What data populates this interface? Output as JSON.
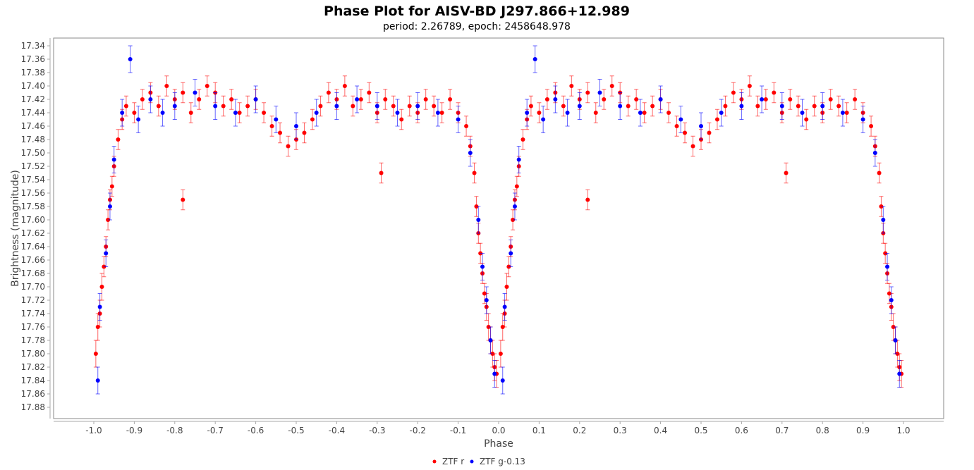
{
  "chart_data": {
    "type": "scatter",
    "title": "Phase Plot for AISV-BD J297.866+12.989",
    "subtitle": "period: 2.26789, epoch: 2458648.978",
    "xlabel": "Phase",
    "ylabel": "Brightness (magnitude)",
    "xlim": [
      -1.1,
      1.1
    ],
    "ylim": [
      17.33,
      17.9
    ],
    "y_inverted": true,
    "grid": false,
    "legend_position": "bottom",
    "x_ticks": [
      "-1.0",
      "-0.9",
      "-0.8",
      "-0.7",
      "-0.6",
      "-0.5",
      "-0.4",
      "-0.3",
      "-0.2",
      "-0.1",
      "0.0",
      "0.1",
      "0.2",
      "0.3",
      "0.4",
      "0.5",
      "0.6",
      "0.7",
      "0.8",
      "0.9",
      "1.0"
    ],
    "y_ticks": [
      "17.34",
      "17.36",
      "17.38",
      "17.40",
      "17.42",
      "17.44",
      "17.46",
      "17.48",
      "17.50",
      "17.52",
      "17.54",
      "17.56",
      "17.58",
      "17.60",
      "17.62",
      "17.64",
      "17.66",
      "17.68",
      "17.70",
      "17.72",
      "17.74",
      "17.76",
      "17.78",
      "17.80",
      "17.82",
      "17.84",
      "17.86",
      "17.88"
    ],
    "series": [
      {
        "name": "ZTF r",
        "color": "#ff0000",
        "points": [
          [
            -0.995,
            17.8,
            0.02
          ],
          [
            -0.99,
            17.76,
            0.02
          ],
          [
            -0.985,
            17.74,
            0.02
          ],
          [
            -0.98,
            17.7,
            0.02
          ],
          [
            -0.975,
            17.67,
            0.015
          ],
          [
            -0.97,
            17.64,
            0.015
          ],
          [
            -0.965,
            17.6,
            0.015
          ],
          [
            -0.96,
            17.57,
            0.015
          ],
          [
            -0.955,
            17.55,
            0.015
          ],
          [
            -0.95,
            17.52,
            0.015
          ],
          [
            -0.94,
            17.48,
            0.015
          ],
          [
            -0.93,
            17.45,
            0.015
          ],
          [
            -0.92,
            17.43,
            0.015
          ],
          [
            -0.9,
            17.44,
            0.015
          ],
          [
            -0.88,
            17.42,
            0.015
          ],
          [
            -0.86,
            17.41,
            0.015
          ],
          [
            -0.84,
            17.43,
            0.015
          ],
          [
            -0.82,
            17.4,
            0.015
          ],
          [
            -0.8,
            17.42,
            0.015
          ],
          [
            -0.78,
            17.41,
            0.015
          ],
          [
            -0.78,
            17.57,
            0.015
          ],
          [
            -0.76,
            17.44,
            0.015
          ],
          [
            -0.74,
            17.42,
            0.015
          ],
          [
            -0.72,
            17.4,
            0.015
          ],
          [
            -0.7,
            17.41,
            0.015
          ],
          [
            -0.68,
            17.43,
            0.015
          ],
          [
            -0.66,
            17.42,
            0.015
          ],
          [
            -0.64,
            17.44,
            0.015
          ],
          [
            -0.62,
            17.43,
            0.015
          ],
          [
            -0.6,
            17.42,
            0.015
          ],
          [
            -0.58,
            17.44,
            0.015
          ],
          [
            -0.56,
            17.46,
            0.015
          ],
          [
            -0.54,
            17.47,
            0.015
          ],
          [
            -0.52,
            17.49,
            0.015
          ],
          [
            -0.5,
            17.48,
            0.015
          ],
          [
            -0.48,
            17.47,
            0.015
          ],
          [
            -0.46,
            17.45,
            0.015
          ],
          [
            -0.44,
            17.43,
            0.015
          ],
          [
            -0.42,
            17.41,
            0.015
          ],
          [
            -0.4,
            17.42,
            0.015
          ],
          [
            -0.38,
            17.4,
            0.015
          ],
          [
            -0.36,
            17.43,
            0.015
          ],
          [
            -0.34,
            17.42,
            0.015
          ],
          [
            -0.32,
            17.41,
            0.015
          ],
          [
            -0.3,
            17.44,
            0.015
          ],
          [
            -0.29,
            17.53,
            0.015
          ],
          [
            -0.28,
            17.42,
            0.015
          ],
          [
            -0.26,
            17.43,
            0.015
          ],
          [
            -0.24,
            17.45,
            0.015
          ],
          [
            -0.22,
            17.43,
            0.015
          ],
          [
            -0.2,
            17.44,
            0.015
          ],
          [
            -0.18,
            17.42,
            0.015
          ],
          [
            -0.16,
            17.43,
            0.015
          ],
          [
            -0.14,
            17.44,
            0.015
          ],
          [
            -0.12,
            17.42,
            0.015
          ],
          [
            -0.1,
            17.44,
            0.015
          ],
          [
            -0.08,
            17.46,
            0.015
          ],
          [
            -0.07,
            17.49,
            0.015
          ],
          [
            -0.06,
            17.53,
            0.015
          ],
          [
            -0.055,
            17.58,
            0.015
          ],
          [
            -0.05,
            17.62,
            0.015
          ],
          [
            -0.045,
            17.65,
            0.015
          ],
          [
            -0.04,
            17.68,
            0.015
          ],
          [
            -0.035,
            17.71,
            0.015
          ],
          [
            -0.03,
            17.73,
            0.02
          ],
          [
            -0.025,
            17.76,
            0.02
          ],
          [
            -0.02,
            17.78,
            0.02
          ],
          [
            -0.015,
            17.8,
            0.02
          ],
          [
            -0.01,
            17.82,
            0.02
          ],
          [
            -0.005,
            17.83,
            0.02
          ],
          [
            0.005,
            17.8,
            0.02
          ],
          [
            0.01,
            17.76,
            0.02
          ],
          [
            0.015,
            17.74,
            0.02
          ],
          [
            0.02,
            17.7,
            0.02
          ],
          [
            0.025,
            17.67,
            0.015
          ],
          [
            0.03,
            17.64,
            0.015
          ],
          [
            0.035,
            17.6,
            0.015
          ],
          [
            0.04,
            17.57,
            0.015
          ],
          [
            0.045,
            17.55,
            0.015
          ],
          [
            0.05,
            17.52,
            0.015
          ],
          [
            0.06,
            17.48,
            0.015
          ],
          [
            0.07,
            17.45,
            0.015
          ],
          [
            0.08,
            17.43,
            0.015
          ],
          [
            0.1,
            17.44,
            0.015
          ],
          [
            0.12,
            17.42,
            0.015
          ],
          [
            0.14,
            17.41,
            0.015
          ],
          [
            0.16,
            17.43,
            0.015
          ],
          [
            0.18,
            17.4,
            0.015
          ],
          [
            0.2,
            17.42,
            0.015
          ],
          [
            0.22,
            17.41,
            0.015
          ],
          [
            0.22,
            17.57,
            0.015
          ],
          [
            0.24,
            17.44,
            0.015
          ],
          [
            0.26,
            17.42,
            0.015
          ],
          [
            0.28,
            17.4,
            0.015
          ],
          [
            0.3,
            17.41,
            0.015
          ],
          [
            0.32,
            17.43,
            0.015
          ],
          [
            0.34,
            17.42,
            0.015
          ],
          [
            0.36,
            17.44,
            0.015
          ],
          [
            0.38,
            17.43,
            0.015
          ],
          [
            0.4,
            17.42,
            0.015
          ],
          [
            0.42,
            17.44,
            0.015
          ],
          [
            0.44,
            17.46,
            0.015
          ],
          [
            0.46,
            17.47,
            0.015
          ],
          [
            0.48,
            17.49,
            0.015
          ],
          [
            0.5,
            17.48,
            0.015
          ],
          [
            0.52,
            17.47,
            0.015
          ],
          [
            0.54,
            17.45,
            0.015
          ],
          [
            0.56,
            17.43,
            0.015
          ],
          [
            0.58,
            17.41,
            0.015
          ],
          [
            0.6,
            17.42,
            0.015
          ],
          [
            0.62,
            17.4,
            0.015
          ],
          [
            0.64,
            17.43,
            0.015
          ],
          [
            0.66,
            17.42,
            0.015
          ],
          [
            0.68,
            17.41,
            0.015
          ],
          [
            0.7,
            17.44,
            0.015
          ],
          [
            0.71,
            17.53,
            0.015
          ],
          [
            0.72,
            17.42,
            0.015
          ],
          [
            0.74,
            17.43,
            0.015
          ],
          [
            0.76,
            17.45,
            0.015
          ],
          [
            0.78,
            17.43,
            0.015
          ],
          [
            0.8,
            17.44,
            0.015
          ],
          [
            0.82,
            17.42,
            0.015
          ],
          [
            0.84,
            17.43,
            0.015
          ],
          [
            0.86,
            17.44,
            0.015
          ],
          [
            0.88,
            17.42,
            0.015
          ],
          [
            0.9,
            17.44,
            0.015
          ],
          [
            0.92,
            17.46,
            0.015
          ],
          [
            0.93,
            17.49,
            0.015
          ],
          [
            0.94,
            17.53,
            0.015
          ],
          [
            0.945,
            17.58,
            0.015
          ],
          [
            0.95,
            17.62,
            0.015
          ],
          [
            0.955,
            17.65,
            0.015
          ],
          [
            0.96,
            17.68,
            0.015
          ],
          [
            0.965,
            17.71,
            0.015
          ],
          [
            0.97,
            17.73,
            0.02
          ],
          [
            0.975,
            17.76,
            0.02
          ],
          [
            0.98,
            17.78,
            0.02
          ],
          [
            0.985,
            17.8,
            0.02
          ],
          [
            0.99,
            17.82,
            0.02
          ],
          [
            0.995,
            17.83,
            0.02
          ]
        ]
      },
      {
        "name": "ZTF g-0.13",
        "color": "#0000ff",
        "points": [
          [
            -0.99,
            17.84,
            0.02
          ],
          [
            -0.985,
            17.73,
            0.02
          ],
          [
            -0.97,
            17.65,
            0.02
          ],
          [
            -0.96,
            17.58,
            0.02
          ],
          [
            -0.95,
            17.51,
            0.02
          ],
          [
            -0.93,
            17.44,
            0.02
          ],
          [
            -0.91,
            17.36,
            0.02
          ],
          [
            -0.89,
            17.45,
            0.02
          ],
          [
            -0.86,
            17.42,
            0.02
          ],
          [
            -0.83,
            17.44,
            0.02
          ],
          [
            -0.8,
            17.43,
            0.02
          ],
          [
            -0.75,
            17.41,
            0.02
          ],
          [
            -0.7,
            17.43,
            0.02
          ],
          [
            -0.65,
            17.44,
            0.02
          ],
          [
            -0.6,
            17.42,
            0.02
          ],
          [
            -0.55,
            17.45,
            0.02
          ],
          [
            -0.5,
            17.46,
            0.02
          ],
          [
            -0.45,
            17.44,
            0.02
          ],
          [
            -0.4,
            17.43,
            0.02
          ],
          [
            -0.35,
            17.42,
            0.02
          ],
          [
            -0.3,
            17.43,
            0.02
          ],
          [
            -0.25,
            17.44,
            0.02
          ],
          [
            -0.2,
            17.43,
            0.02
          ],
          [
            -0.15,
            17.44,
            0.02
          ],
          [
            -0.1,
            17.45,
            0.02
          ],
          [
            -0.07,
            17.5,
            0.02
          ],
          [
            -0.05,
            17.6,
            0.02
          ],
          [
            -0.04,
            17.67,
            0.02
          ],
          [
            -0.03,
            17.72,
            0.02
          ],
          [
            -0.02,
            17.78,
            0.02
          ],
          [
            -0.01,
            17.83,
            0.02
          ],
          [
            0.01,
            17.84,
            0.02
          ],
          [
            0.015,
            17.73,
            0.02
          ],
          [
            0.03,
            17.65,
            0.02
          ],
          [
            0.04,
            17.58,
            0.02
          ],
          [
            0.05,
            17.51,
            0.02
          ],
          [
            0.07,
            17.44,
            0.02
          ],
          [
            0.09,
            17.36,
            0.02
          ],
          [
            0.11,
            17.45,
            0.02
          ],
          [
            0.14,
            17.42,
            0.02
          ],
          [
            0.17,
            17.44,
            0.02
          ],
          [
            0.2,
            17.43,
            0.02
          ],
          [
            0.25,
            17.41,
            0.02
          ],
          [
            0.3,
            17.43,
            0.02
          ],
          [
            0.35,
            17.44,
            0.02
          ],
          [
            0.4,
            17.42,
            0.02
          ],
          [
            0.45,
            17.45,
            0.02
          ],
          [
            0.5,
            17.46,
            0.02
          ],
          [
            0.55,
            17.44,
            0.02
          ],
          [
            0.6,
            17.43,
            0.02
          ],
          [
            0.65,
            17.42,
            0.02
          ],
          [
            0.7,
            17.43,
            0.02
          ],
          [
            0.75,
            17.44,
            0.02
          ],
          [
            0.8,
            17.43,
            0.02
          ],
          [
            0.85,
            17.44,
            0.02
          ],
          [
            0.9,
            17.45,
            0.02
          ],
          [
            0.93,
            17.5,
            0.02
          ],
          [
            0.95,
            17.6,
            0.02
          ],
          [
            0.96,
            17.67,
            0.02
          ],
          [
            0.97,
            17.72,
            0.02
          ],
          [
            0.98,
            17.78,
            0.02
          ],
          [
            0.99,
            17.83,
            0.02
          ]
        ]
      }
    ]
  }
}
